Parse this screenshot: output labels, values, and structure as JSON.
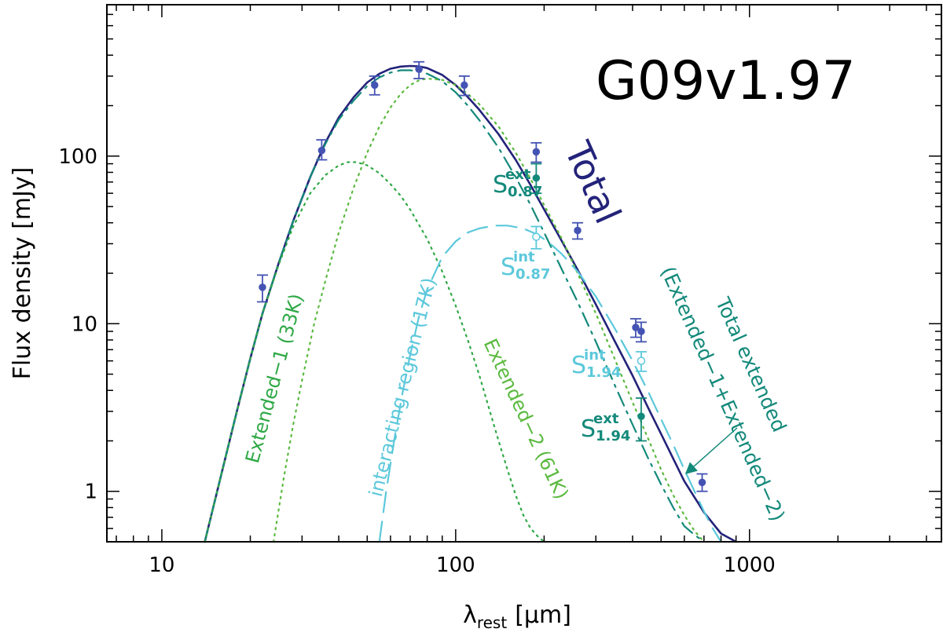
{
  "chart_data": {
    "type": "line",
    "title": "G09v1.97",
    "xlabel": "λ",
    "xlabel_sub": "rest",
    "xlabel_units": "[μm]",
    "ylabel": "Flux density [mJy]",
    "xscale": "log",
    "yscale": "log",
    "xlim": [
      6.5,
      4500
    ],
    "ylim": [
      0.5,
      800
    ],
    "xticks": [
      10,
      100,
      1000
    ],
    "xtick_labels": [
      "10",
      "100",
      "1000"
    ],
    "yticks": [
      1,
      10,
      100
    ],
    "ytick_labels": [
      "1",
      "10",
      "100"
    ],
    "colors": {
      "total": "#23237a",
      "extended_total": "#13897a",
      "extended_components": "#5ab93e",
      "interacting": "#5cc8db",
      "points": "#4453b3"
    },
    "series": [
      {
        "name": "Total",
        "style": "solid",
        "color": "#23237a",
        "x": [
          14,
          16,
          18,
          20,
          22,
          25,
          28,
          32,
          36,
          40,
          45,
          50,
          55,
          60,
          65,
          70,
          75,
          80,
          90,
          100,
          110,
          120,
          140,
          160,
          180,
          200,
          230,
          260,
          300,
          350,
          400,
          450,
          500,
          600,
          700,
          800,
          900
        ],
        "y": [
          0.5,
          1.3,
          3.0,
          6.2,
          11.5,
          23,
          41,
          75,
          120,
          170,
          225,
          275,
          310,
          332,
          342,
          345,
          343,
          335,
          305,
          265,
          225,
          190,
          135,
          95,
          67,
          48,
          31,
          21,
          13,
          7.7,
          4.9,
          3.2,
          2.2,
          1.15,
          0.75,
          0.56,
          0.5
        ]
      },
      {
        "name": "Total extended (Extended−1+Extended−2)",
        "style": "dashdot",
        "color": "#13897a",
        "x": [
          14,
          16,
          18,
          20,
          22,
          25,
          28,
          32,
          36,
          40,
          45,
          50,
          55,
          60,
          65,
          70,
          75,
          80,
          90,
          100,
          110,
          120,
          140,
          160,
          180,
          200,
          230,
          260,
          300,
          350,
          400,
          450,
          500,
          550,
          600,
          650,
          700
        ],
        "y": [
          0.5,
          1.3,
          3.0,
          6.2,
          11.5,
          23,
          41,
          75,
          118,
          165,
          215,
          262,
          295,
          315,
          325,
          325,
          320,
          310,
          280,
          240,
          200,
          165,
          112,
          75,
          51,
          35,
          21,
          13.5,
          7.8,
          4.2,
          2.5,
          1.6,
          1.1,
          0.8,
          0.62,
          0.55,
          0.5
        ]
      },
      {
        "name": "Extended−1 (33K)",
        "style": "dotted",
        "color": "#2ea845",
        "x": [
          14,
          16,
          18,
          20,
          22,
          25,
          28,
          32,
          36,
          40,
          43,
          46,
          50,
          55,
          60,
          65,
          70,
          80,
          90,
          100,
          110,
          120,
          130,
          140,
          150,
          160,
          170,
          180,
          190,
          200
        ],
        "y": [
          0.5,
          1.3,
          3.0,
          6.2,
          11.5,
          22.5,
          38,
          60,
          77,
          88,
          92,
          92,
          88,
          79,
          68,
          58,
          48,
          32,
          20.5,
          12.8,
          8.0,
          5.0,
          3.1,
          2.0,
          1.35,
          0.95,
          0.72,
          0.6,
          0.54,
          0.5
        ]
      },
      {
        "name": "Extended−2 (61K)",
        "style": "dotted",
        "color": "#5ab93e",
        "x": [
          24,
          26,
          28,
          30,
          33,
          36,
          40,
          45,
          50,
          55,
          60,
          65,
          70,
          75,
          80,
          90,
          100,
          110,
          120,
          140,
          160,
          180,
          200,
          230,
          260,
          300,
          350,
          400,
          450,
          500,
          550,
          600,
          650,
          700
        ],
        "y": [
          0.5,
          1.2,
          2.5,
          4.6,
          10,
          18,
          35,
          65,
          105,
          150,
          195,
          235,
          265,
          283,
          290,
          285,
          265,
          235,
          205,
          150,
          105,
          73,
          51,
          32,
          20,
          11.5,
          6.0,
          3.4,
          2.1,
          1.35,
          0.95,
          0.72,
          0.58,
          0.5
        ]
      },
      {
        "name": "interacting region (17K)",
        "style": "dashed",
        "color": "#5cc8db",
        "x": [
          55,
          58,
          62,
          66,
          70,
          75,
          80,
          90,
          100,
          110,
          120,
          135,
          150,
          170,
          190,
          210,
          230,
          260,
          300,
          350,
          400,
          450,
          500,
          550,
          600,
          650,
          700,
          750,
          800
        ],
        "y": [
          0.5,
          1.0,
          2.1,
          3.9,
          6.5,
          11,
          16,
          25,
          31,
          35,
          37,
          38.5,
          38.5,
          37,
          34,
          30,
          26,
          20.5,
          14.5,
          9.2,
          6.0,
          4.0,
          2.7,
          1.9,
          1.35,
          1.0,
          0.76,
          0.6,
          0.5
        ]
      }
    ],
    "points": [
      {
        "label": "",
        "x": 22,
        "y": 16.5,
        "yerr_low": 13.5,
        "yerr_high": 19.5,
        "color": "#4453b3",
        "filled": true
      },
      {
        "label": "",
        "x": 35,
        "y": 108,
        "yerr_low": 95,
        "yerr_high": 125,
        "color": "#4453b3",
        "filled": true
      },
      {
        "label": "",
        "x": 53,
        "y": 265,
        "yerr_low": 232,
        "yerr_high": 300,
        "color": "#4453b3",
        "filled": true
      },
      {
        "label": "",
        "x": 75,
        "y": 330,
        "yerr_low": 290,
        "yerr_high": 365,
        "color": "#4453b3",
        "filled": true
      },
      {
        "label": "",
        "x": 107,
        "y": 265,
        "yerr_low": 230,
        "yerr_high": 300,
        "color": "#4453b3",
        "filled": true
      },
      {
        "label": "",
        "x": 188,
        "y": 106,
        "yerr_low": 92,
        "yerr_high": 120,
        "color": "#4453b3",
        "filled": true
      },
      {
        "label": "",
        "x": 260,
        "y": 36,
        "yerr_low": 32,
        "yerr_high": 40,
        "color": "#4453b3",
        "filled": true
      },
      {
        "label": "",
        "x": 410,
        "y": 9.5,
        "yerr_low": 8.3,
        "yerr_high": 10.7,
        "color": "#4453b3",
        "filled": true
      },
      {
        "label": "",
        "x": 428,
        "y": 9.0,
        "yerr_low": 7.8,
        "yerr_high": 10.2,
        "color": "#4453b3",
        "filled": true
      },
      {
        "label": "",
        "x": 690,
        "y": 1.13,
        "yerr_low": 1.0,
        "yerr_high": 1.27,
        "color": "#4453b3",
        "filled": true
      },
      {
        "label": "S0.87 ext",
        "x": 188,
        "y": 74,
        "yerr_low": 60,
        "yerr_high": 90,
        "color": "#13897a",
        "filled": true
      },
      {
        "label": "S0.87 int",
        "x": 188,
        "y": 33,
        "yerr_low": 28,
        "yerr_high": 38,
        "color": "#5cc8db",
        "filled": false
      },
      {
        "label": "S1.94 int",
        "x": 428,
        "y": 6.0,
        "yerr_low": 5.2,
        "yerr_high": 6.8,
        "color": "#5cc8db",
        "filled": false
      },
      {
        "label": "S1.94 ext",
        "x": 428,
        "y": 2.8,
        "yerr_low": 2.0,
        "yerr_high": 3.6,
        "color": "#13897a",
        "filled": true
      }
    ],
    "annotations": {
      "total": "Total",
      "total_extended_1": "Total extended",
      "total_extended_2": "(Extended−1+Extended−2)",
      "extended1": "Extended−1 (33K)",
      "extended2": "Extended−2 (61K)",
      "interacting": "interacting region (17K)",
      "s_letter": "S",
      "sup_ext": "ext",
      "sup_int": "int",
      "sub_087": "0.87",
      "sub_194": "1.94"
    }
  }
}
